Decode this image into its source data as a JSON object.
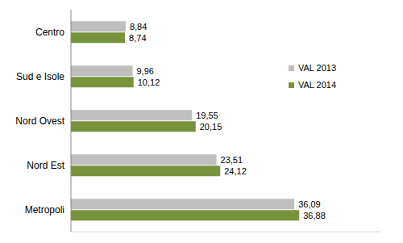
{
  "chart_data": {
    "type": "bar",
    "orientation": "horizontal",
    "categories": [
      "Centro",
      "Sud e Isole",
      "Nord Ovest",
      "Nord Est",
      "Metropoli"
    ],
    "series": [
      {
        "name": "VAL 2013",
        "color": "#bfbfbf",
        "values": [
          8.84,
          9.96,
          19.55,
          23.51,
          36.09
        ],
        "value_labels": [
          "8,84",
          "9,96",
          "19,55",
          "23,51",
          "36,09"
        ]
      },
      {
        "name": "VAL 2014",
        "color": "#77933c",
        "values": [
          8.74,
          10.12,
          20.15,
          24.12,
          36.88
        ],
        "value_labels": [
          "8,74",
          "10,12",
          "20,15",
          "24,12",
          "36,88"
        ]
      }
    ],
    "xlim": [
      0,
      50
    ],
    "data_labels": true,
    "tick_labels": "y",
    "legend": "right",
    "grid": false
  }
}
